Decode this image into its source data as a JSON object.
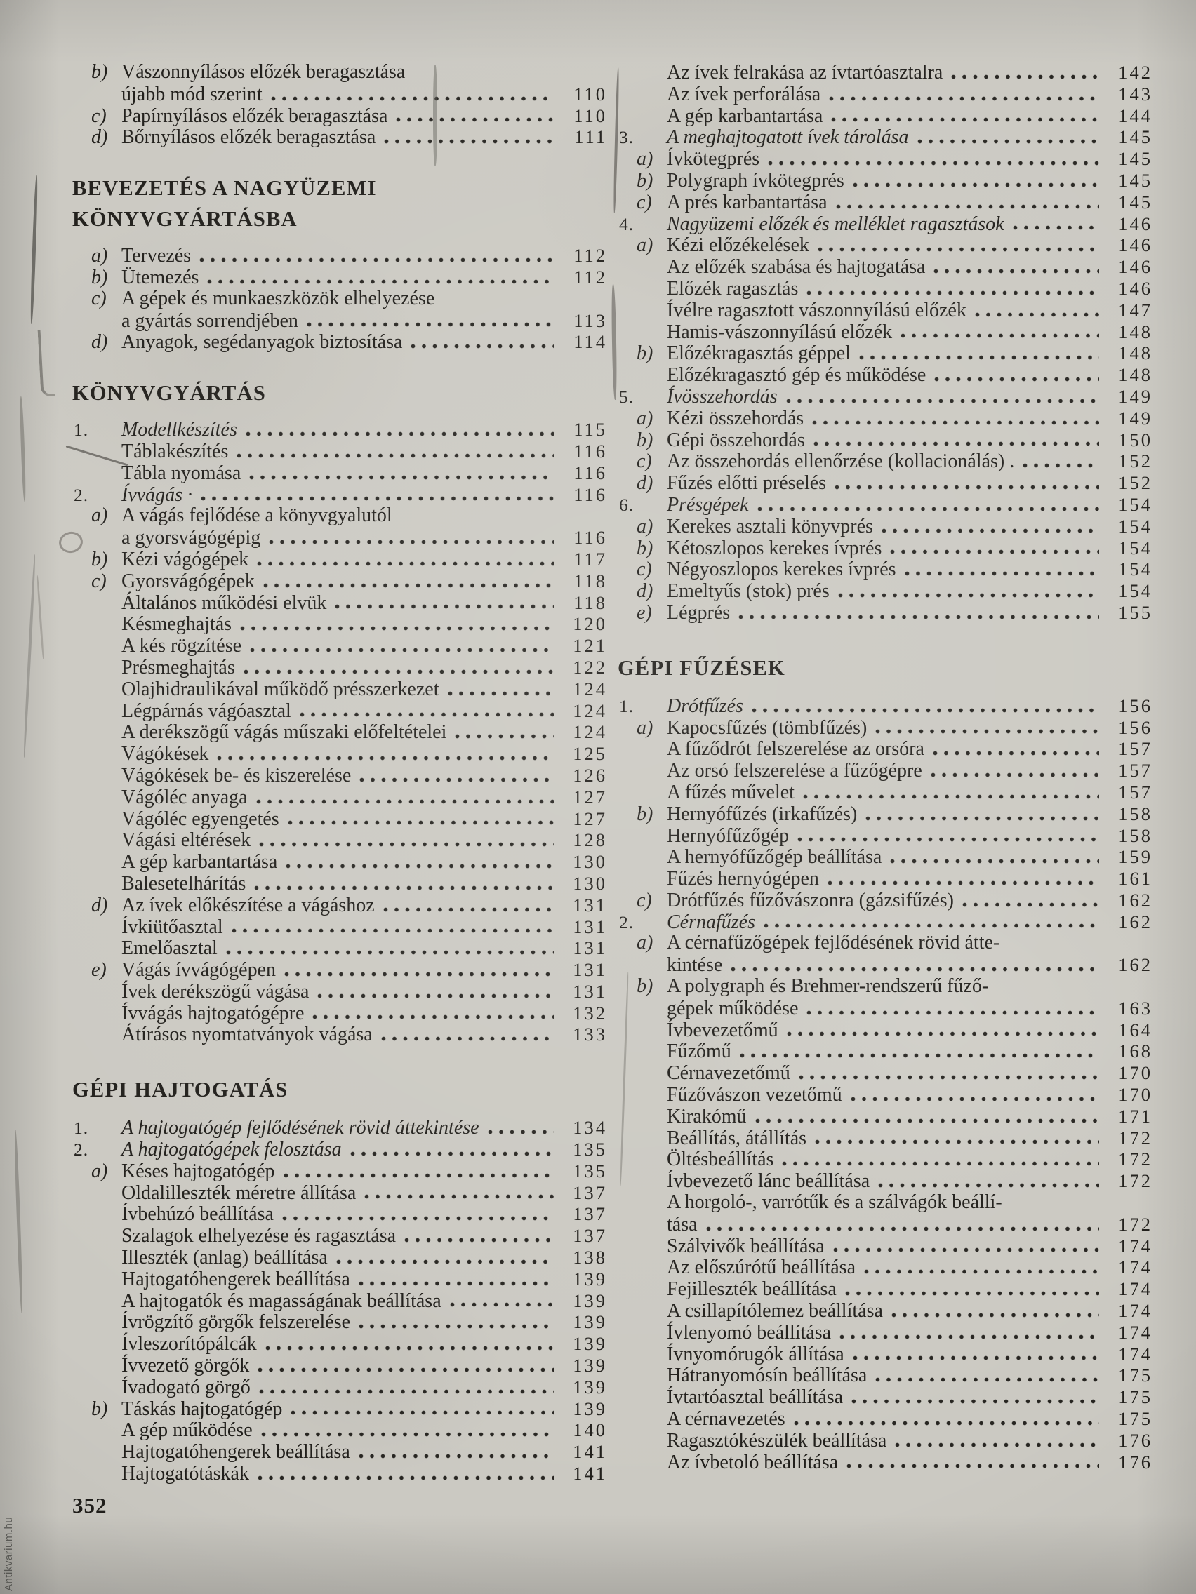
{
  "page": {
    "number": "352",
    "watermark": "Antikvarium.hu"
  },
  "toc": {
    "left": [
      {
        "lvl": 1,
        "prefix": "b)",
        "text": "Vászonnyílásos előzék beragasztása"
      },
      {
        "lvl": 2,
        "text": "újabb mód szerint",
        "dots": true,
        "page": "110"
      },
      {
        "lvl": 1,
        "prefix": "c)",
        "text": "Papírnyílásos előzék beragasztása",
        "dots": true,
        "page": "110"
      },
      {
        "lvl": 1,
        "prefix": "d)",
        "text": "Bőrnyílásos előzék beragasztása",
        "dots": true,
        "page": "111"
      },
      {
        "gap": 34
      },
      {
        "heading": "BEVEZETÉS A NAGYÜZEMI"
      },
      {
        "heading": "KÖNYVGYÁRTÁSBA"
      },
      {
        "gap": 16
      },
      {
        "lvl": 1,
        "prefix": "a)",
        "text": "Tervezés",
        "dots": true,
        "page": "112"
      },
      {
        "lvl": 1,
        "prefix": "b)",
        "text": "Ütemezés",
        "dots": true,
        "page": "112"
      },
      {
        "lvl": 1,
        "prefix": "c)",
        "text": "A gépek és munkaeszközök elhelyezése"
      },
      {
        "lvl": 2,
        "text": "a gyártás sorrendjében",
        "dots": true,
        "page": "113"
      },
      {
        "lvl": 1,
        "prefix": "d)",
        "text": "Anyagok, segédanyagok biztosítása",
        "dots": true,
        "page": "114"
      },
      {
        "gap": 34
      },
      {
        "heading": "KÖNYVGYÁRTÁS"
      },
      {
        "gap": 16
      },
      {
        "lvl": 0,
        "prefix": "1.",
        "text": "Modellkészítés",
        "italic": true,
        "dots": true,
        "page": "115"
      },
      {
        "lvl": 2,
        "text": "Táblakészítés",
        "dots": true,
        "page": "116"
      },
      {
        "lvl": 2,
        "text": "Tábla nyomása",
        "dots": true,
        "page": "116"
      },
      {
        "lvl": 0,
        "prefix": "2.",
        "text": "Ívvágás ·",
        "italic": true,
        "dots": true,
        "page": "116"
      },
      {
        "lvl": 1,
        "prefix": "a)",
        "text": "A vágás fejlődése a könyvgyalutól"
      },
      {
        "lvl": 2,
        "text": "a gyorsvágógépig",
        "dots": true,
        "page": "116"
      },
      {
        "lvl": 1,
        "prefix": "b)",
        "text": "Kézi vágógépek",
        "dots": true,
        "page": "117"
      },
      {
        "lvl": 1,
        "prefix": "c)",
        "text": "Gyorsvágógépek",
        "dots": true,
        "page": "118"
      },
      {
        "lvl": 2,
        "text": "Általános működési elvük",
        "dots": true,
        "page": "118"
      },
      {
        "lvl": 2,
        "text": "Késmeghajtás",
        "dots": true,
        "page": "120"
      },
      {
        "lvl": 2,
        "text": "A kés rögzítése",
        "dots": true,
        "page": "121"
      },
      {
        "lvl": 2,
        "text": "Présmeghajtás",
        "dots": true,
        "page": "122"
      },
      {
        "lvl": 2,
        "text": "Olajhidraulikával működő présszerkezet",
        "dots": true,
        "page": "124"
      },
      {
        "lvl": 2,
        "text": "Légpárnás vágóasztal",
        "dots": true,
        "page": "124"
      },
      {
        "lvl": 2,
        "text": "A derékszögű vágás műszaki előfeltételei",
        "dots": true,
        "page": "124"
      },
      {
        "lvl": 2,
        "text": "Vágókések",
        "dots": true,
        "page": "125"
      },
      {
        "lvl": 2,
        "text": "Vágókések be- és kiszerelése",
        "dots": true,
        "page": "126"
      },
      {
        "lvl": 2,
        "text": "Vágóléc anyaga",
        "dots": true,
        "page": "127"
      },
      {
        "lvl": 2,
        "text": "Vágóléc egyengetés",
        "dots": true,
        "page": "127"
      },
      {
        "lvl": 2,
        "text": "Vágási eltérések",
        "dots": true,
        "page": "128"
      },
      {
        "lvl": 2,
        "text": "A gép karbantartása",
        "dots": true,
        "page": "130"
      },
      {
        "lvl": 2,
        "text": "Balesetelhárítás",
        "dots": true,
        "page": "130"
      },
      {
        "lvl": 1,
        "prefix": "d)",
        "text": "Az ívek előkészítése a vágáshoz",
        "dots": true,
        "page": "131"
      },
      {
        "lvl": 2,
        "text": "Ívkiütőasztal",
        "dots": true,
        "page": "131"
      },
      {
        "lvl": 2,
        "text": "Emelőasztal",
        "dots": true,
        "page": "131"
      },
      {
        "lvl": 1,
        "prefix": "e)",
        "text": "Vágás ívvágógépen",
        "dots": true,
        "page": "131"
      },
      {
        "lvl": 2,
        "text": "Ívek derékszögű vágása",
        "dots": true,
        "page": "131"
      },
      {
        "lvl": 2,
        "text": "Ívvágás hajtogatógépre",
        "dots": true,
        "page": "132"
      },
      {
        "lvl": 2,
        "text": "Átírásos nyomtatványok vágása",
        "dots": true,
        "page": "133"
      },
      {
        "gap": 40
      },
      {
        "heading": "GÉPI HAJTOGATÁS"
      },
      {
        "gap": 18
      },
      {
        "lvl": 0,
        "prefix": "1.",
        "text": "A hajtogatógép fejlődésének rövid áttekintése",
        "italic": true,
        "dots": true,
        "page": "134"
      },
      {
        "lvl": 0,
        "prefix": "2.",
        "text": "A hajtogatógépek felosztása",
        "italic": true,
        "dots": true,
        "page": "135"
      },
      {
        "lvl": 1,
        "prefix": "a)",
        "text": "Késes hajtogatógép",
        "dots": true,
        "page": "135"
      },
      {
        "lvl": 2,
        "text": "Oldalilleszték méretre állítása",
        "dots": true,
        "page": "137"
      },
      {
        "lvl": 2,
        "text": "Ívbehúzó beállítása",
        "dots": true,
        "page": "137"
      },
      {
        "lvl": 2,
        "text": "Szalagok elhelyezése és ragasztása",
        "dots": true,
        "page": "137"
      },
      {
        "lvl": 2,
        "text": "Illeszték (anlag) beállítása",
        "dots": true,
        "page": "138"
      },
      {
        "lvl": 2,
        "text": "Hajtogatóhengerek beállítása",
        "dots": true,
        "page": "139"
      },
      {
        "lvl": 2,
        "text": "A hajtogatók és magasságának beállítása",
        "dots": true,
        "page": "139"
      },
      {
        "lvl": 2,
        "text": "Ívrögzítő görgők felszerelése",
        "dots": true,
        "page": "139"
      },
      {
        "lvl": 2,
        "text": "Ívleszorítópálcák",
        "dots": true,
        "page": "139"
      },
      {
        "lvl": 2,
        "text": "Ívvezető görgők",
        "dots": true,
        "page": "139"
      },
      {
        "lvl": 2,
        "text": "Ívadogató görgő",
        "dots": true,
        "page": "139"
      },
      {
        "lvl": 1,
        "prefix": "b)",
        "text": "Táskás hajtogatógép",
        "dots": true,
        "page": "139"
      },
      {
        "lvl": 2,
        "text": "A gép működése",
        "dots": true,
        "page": "140"
      },
      {
        "lvl": 2,
        "text": "Hajtogatóhengerek beállítása",
        "dots": true,
        "page": "141"
      },
      {
        "lvl": 2,
        "text": "Hajtogatótáskák",
        "dots": true,
        "page": "141"
      }
    ],
    "right": [
      {
        "lvl": 2,
        "text": "Az ívek felrakása az ívtartóasztalra",
        "dots": true,
        "page": "142"
      },
      {
        "lvl": 2,
        "text": "Az ívek perforálása",
        "dots": true,
        "page": "143"
      },
      {
        "lvl": 2,
        "text": "A gép karbantartása",
        "dots": true,
        "page": "144"
      },
      {
        "lvl": 0,
        "prefix": "3.",
        "text": "A meghajtogatott ívek tárolása",
        "italic": true,
        "dots": true,
        "page": "145"
      },
      {
        "lvl": 1,
        "prefix": "a)",
        "text": "Ívkötegprés",
        "dots": true,
        "page": "145"
      },
      {
        "lvl": 1,
        "prefix": "b)",
        "text": "Polygraph ívkötegprés",
        "dots": true,
        "page": "145"
      },
      {
        "lvl": 1,
        "prefix": "c)",
        "text": "A prés karbantartása",
        "dots": true,
        "page": "145"
      },
      {
        "lvl": 0,
        "prefix": "4.",
        "text": "Nagyüzemi előzék és melléklet ragasztások",
        "italic": true,
        "dots": true,
        "page": "146"
      },
      {
        "lvl": 1,
        "prefix": "a)",
        "text": "Kézi előzékelések",
        "dots": true,
        "page": "146"
      },
      {
        "lvl": 2,
        "text": "Az előzék szabása és hajtogatása",
        "dots": true,
        "page": "146"
      },
      {
        "lvl": 2,
        "text": "Előzék ragasztás",
        "dots": true,
        "page": "146"
      },
      {
        "lvl": 2,
        "text": "Ívélre ragasztott vászonnyílású előzék",
        "dots": true,
        "page": "147"
      },
      {
        "lvl": 2,
        "text": "Hamis-vászonnyílású előzék",
        "dots": true,
        "page": "148"
      },
      {
        "lvl": 1,
        "prefix": "b)",
        "text": "Előzékragasztás géppel",
        "dots": true,
        "page": "148"
      },
      {
        "lvl": 2,
        "text": "Előzékragasztó gép és működése",
        "dots": true,
        "page": "148"
      },
      {
        "lvl": 0,
        "prefix": "5.",
        "text": "Ívösszehordás",
        "italic": true,
        "dots": true,
        "page": "149"
      },
      {
        "lvl": 1,
        "prefix": "a)",
        "text": "Kézi összehordás",
        "dots": true,
        "page": "149"
      },
      {
        "lvl": 1,
        "prefix": "b)",
        "text": "Gépi összehordás",
        "dots": true,
        "page": "150"
      },
      {
        "lvl": 1,
        "prefix": "c)",
        "text": "Az összehordás ellenőrzése (kollacionálás) .",
        "dots": true,
        "page": "152"
      },
      {
        "lvl": 1,
        "prefix": "d)",
        "text": "Fűzés előtti préselés",
        "dots": true,
        "page": "152"
      },
      {
        "lvl": 0,
        "prefix": "6.",
        "text": "Présgépek",
        "italic": true,
        "dots": true,
        "page": "154"
      },
      {
        "lvl": 1,
        "prefix": "a)",
        "text": "Kerekes asztali könyvprés",
        "dots": true,
        "page": "154"
      },
      {
        "lvl": 1,
        "prefix": "b)",
        "text": "Kétoszlopos kerekes ívprés",
        "dots": true,
        "page": "154"
      },
      {
        "lvl": 1,
        "prefix": "c)",
        "text": "Négyoszlopos kerekes ívprés",
        "dots": true,
        "page": "154"
      },
      {
        "lvl": 1,
        "prefix": "d)",
        "text": "Emeltyűs (stok) prés",
        "dots": true,
        "page": "154"
      },
      {
        "lvl": 1,
        "prefix": "e)",
        "text": "Légprés",
        "dots": true,
        "page": "155"
      },
      {
        "gap": 40
      },
      {
        "heading": "GÉPI FŰZÉSEK"
      },
      {
        "gap": 18
      },
      {
        "lvl": 0,
        "prefix": "1.",
        "text": "Drótfűzés",
        "italic": true,
        "dots": true,
        "page": "156"
      },
      {
        "lvl": 1,
        "prefix": "a)",
        "text": "Kapocsfűzés (tömbfűzés)",
        "dots": true,
        "page": "156"
      },
      {
        "lvl": 2,
        "text": "A fűződrót felszerelése az orsóra",
        "dots": true,
        "page": "157"
      },
      {
        "lvl": 2,
        "text": "Az orsó felszerelése a fűzőgépre",
        "dots": true,
        "page": "157"
      },
      {
        "lvl": 2,
        "text": "A fűzés művelet",
        "dots": true,
        "page": "157"
      },
      {
        "lvl": 1,
        "prefix": "b)",
        "text": "Hernyófűzés (irkafűzés)",
        "dots": true,
        "page": "158"
      },
      {
        "lvl": 2,
        "text": "Hernyófűzőgép",
        "dots": true,
        "page": "158"
      },
      {
        "lvl": 2,
        "text": "A hernyófűzőgép beállítása",
        "dots": true,
        "page": "159"
      },
      {
        "lvl": 2,
        "text": "Fűzés hernyógépen",
        "dots": true,
        "page": "161"
      },
      {
        "lvl": 1,
        "prefix": "c)",
        "text": "Drótfűzés fűzővászonra (gázsifűzés)",
        "dots": true,
        "page": "162"
      },
      {
        "lvl": 0,
        "prefix": "2.",
        "text": "Cérnafűzés",
        "italic": true,
        "dots": true,
        "page": "162"
      },
      {
        "lvl": 1,
        "prefix": "a)",
        "text": "A cérnafűzőgépek fejlődésének rövid átte-"
      },
      {
        "lvl": 2,
        "text": "kintése",
        "dots": true,
        "page": "162"
      },
      {
        "lvl": 1,
        "prefix": "b)",
        "text": "A polygraph és Brehmer-rendszerű fűző-"
      },
      {
        "lvl": 2,
        "text": "gépek működése",
        "dots": true,
        "page": "163"
      },
      {
        "lvl": 2,
        "text": "Ívbevezetőmű",
        "dots": true,
        "page": "164"
      },
      {
        "lvl": 2,
        "text": "Fűzőmű",
        "dots": true,
        "page": "168"
      },
      {
        "lvl": 2,
        "text": "Cérnavezetőmű",
        "dots": true,
        "page": "170"
      },
      {
        "lvl": 2,
        "text": "Fűzővászon vezetőmű",
        "dots": true,
        "page": "170"
      },
      {
        "lvl": 2,
        "text": "Kirakómű",
        "dots": true,
        "page": "171"
      },
      {
        "lvl": 2,
        "text": "Beállítás, átállítás",
        "dots": true,
        "page": "172"
      },
      {
        "lvl": 2,
        "text": "Öltésbeállítás",
        "dots": true,
        "page": "172"
      },
      {
        "lvl": 2,
        "text": "Ívbevezető lánc beállítása",
        "dots": true,
        "page": "172"
      },
      {
        "lvl": 2,
        "text": "A horgoló-, varrótűk és a szálvágók beállí-"
      },
      {
        "lvl": 2,
        "text": "tása",
        "dots": true,
        "page": "172"
      },
      {
        "lvl": 2,
        "text": "Szálvivők beállítása",
        "dots": true,
        "page": "174"
      },
      {
        "lvl": 2,
        "text": "Az előszúrótű beállítása",
        "dots": true,
        "page": "174"
      },
      {
        "lvl": 2,
        "text": "Fejilleszték beállítása",
        "dots": true,
        "page": "174"
      },
      {
        "lvl": 2,
        "text": "A csillapítólemez beállítása",
        "dots": true,
        "page": "174"
      },
      {
        "lvl": 2,
        "text": "Ívlenyomó beállítása",
        "dots": true,
        "page": "174"
      },
      {
        "lvl": 2,
        "text": "Ívnyomórugók állítása",
        "dots": true,
        "page": "174"
      },
      {
        "lvl": 2,
        "text": "Hátranyomósín beállítása",
        "dots": true,
        "page": "175"
      },
      {
        "lvl": 2,
        "text": "Ívtartóasztal beállítása",
        "dots": true,
        "page": "175"
      },
      {
        "lvl": 2,
        "text": "A cérnavezetés",
        "dots": true,
        "page": "175"
      },
      {
        "lvl": 2,
        "text": "Ragasztókészülék beállítása",
        "dots": true,
        "page": "176"
      },
      {
        "lvl": 2,
        "text": "Az ívbetoló beállítása",
        "dots": true,
        "page": "176"
      }
    ]
  }
}
